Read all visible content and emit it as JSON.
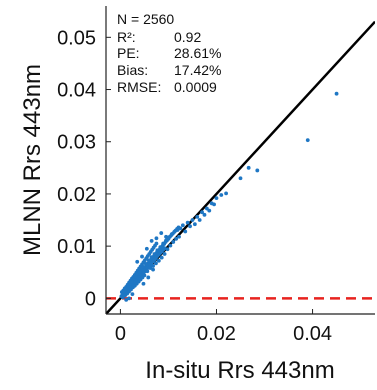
{
  "chart_data": {
    "type": "scatter",
    "xlabel": "In-situ Rrs 443nm",
    "ylabel": "MLNN Rrs 443nm",
    "xlim": [
      -0.003,
      0.053
    ],
    "ylim": [
      -0.003,
      0.056
    ],
    "xticks": [
      0,
      0.02,
      0.04
    ],
    "xtick_labels": [
      "0",
      "0.02",
      "0.04"
    ],
    "yticks": [
      0,
      0.01,
      0.02,
      0.03,
      0.04,
      0.05
    ],
    "ytick_labels": [
      "0",
      "0.01",
      "0.02",
      "0.03",
      "0.04",
      "0.05"
    ],
    "grid": false,
    "colors": {
      "points": "#1f77c4",
      "one_to_one_line": "#000000",
      "zero_line": "#e8231f"
    },
    "reference_lines": [
      {
        "kind": "1:1",
        "style": "solid",
        "color": "#000000"
      },
      {
        "kind": "y=0",
        "style": "dashed",
        "color": "#e8231f"
      }
    ],
    "stats": [
      {
        "label": "N = 2560",
        "value": ""
      },
      {
        "label": "R²:",
        "value": "0.92"
      },
      {
        "label": "PE:",
        "value": "28.61%"
      },
      {
        "label": "Bias:",
        "value": "17.42%"
      },
      {
        "label": "RMSE:",
        "value": "0.0009"
      }
    ],
    "series": [
      {
        "points": [
          [
            0.0004,
            0.0006
          ],
          [
            0.0007,
            0.001
          ],
          [
            0.001,
            0.0014
          ],
          [
            0.0013,
            0.0017
          ],
          [
            0.0016,
            0.002
          ],
          [
            0.0019,
            0.0023
          ],
          [
            0.0022,
            0.0026
          ],
          [
            0.0025,
            0.003
          ],
          [
            0.0028,
            0.0033
          ],
          [
            0.0031,
            0.0036
          ],
          [
            0.0034,
            0.004
          ],
          [
            0.0037,
            0.0043
          ],
          [
            0.004,
            0.0046
          ],
          [
            0.0043,
            0.005
          ],
          [
            0.0046,
            0.0053
          ],
          [
            0.0049,
            0.0057
          ],
          [
            0.0052,
            0.006
          ],
          [
            0.0055,
            0.0064
          ],
          [
            0.0058,
            0.0067
          ],
          [
            0.0061,
            0.007
          ],
          [
            0.0064,
            0.0074
          ],
          [
            0.0067,
            0.0078
          ],
          [
            0.007,
            0.0081
          ],
          [
            0.0073,
            0.0084
          ],
          [
            0.0076,
            0.0088
          ],
          [
            0.0079,
            0.0091
          ],
          [
            0.0082,
            0.0094
          ],
          [
            0.0085,
            0.0098
          ],
          [
            0.0088,
            0.0101
          ],
          [
            0.0091,
            0.0104
          ],
          [
            0.0094,
            0.0108
          ],
          [
            0.0097,
            0.0111
          ],
          [
            0.01,
            0.0114
          ],
          [
            0.0103,
            0.0118
          ],
          [
            0.0106,
            0.0121
          ],
          [
            0.0109,
            0.0124
          ],
          [
            0.0112,
            0.0127
          ],
          [
            0.0115,
            0.013
          ],
          [
            0.0118,
            0.0133
          ],
          [
            0.0121,
            0.0136
          ],
          [
            0.0005,
            0.0002
          ],
          [
            0.0008,
            0.0005
          ],
          [
            0.0011,
            0.0009
          ],
          [
            0.0014,
            0.0012
          ],
          [
            0.0017,
            0.0015
          ],
          [
            0.002,
            0.0018
          ],
          [
            0.0023,
            0.0022
          ],
          [
            0.0026,
            0.0025
          ],
          [
            0.0029,
            0.0028
          ],
          [
            0.0032,
            0.0031
          ],
          [
            0.0035,
            0.0035
          ],
          [
            0.0038,
            0.0038
          ],
          [
            0.0041,
            0.0041
          ],
          [
            0.0044,
            0.0044
          ],
          [
            0.0047,
            0.0048
          ],
          [
            0.005,
            0.0051
          ],
          [
            0.0053,
            0.0054
          ],
          [
            0.0056,
            0.0058
          ],
          [
            0.0059,
            0.0061
          ],
          [
            0.0062,
            0.0064
          ],
          [
            0.0065,
            0.0068
          ],
          [
            0.0068,
            0.0071
          ],
          [
            0.0071,
            0.0074
          ],
          [
            0.0074,
            0.0077
          ],
          [
            0.0077,
            0.0081
          ],
          [
            0.008,
            0.0084
          ],
          [
            0.0083,
            0.0087
          ],
          [
            0.0086,
            0.009
          ],
          [
            0.0089,
            0.0093
          ],
          [
            0.0092,
            0.0096
          ],
          [
            0.0003,
            0.0012
          ],
          [
            0.0006,
            0.0015
          ],
          [
            0.0009,
            0.0019
          ],
          [
            0.0012,
            0.0022
          ],
          [
            0.0015,
            0.0026
          ],
          [
            0.0018,
            0.003
          ],
          [
            0.0021,
            0.0034
          ],
          [
            0.0024,
            0.0038
          ],
          [
            0.0027,
            0.0041
          ],
          [
            0.003,
            0.0045
          ],
          [
            0.0033,
            0.0049
          ],
          [
            0.0036,
            0.0053
          ],
          [
            0.0039,
            0.0057
          ],
          [
            0.0042,
            0.0061
          ],
          [
            0.0045,
            0.0065
          ],
          [
            0.0048,
            0.0069
          ],
          [
            0.0051,
            0.0073
          ],
          [
            0.0054,
            0.0077
          ],
          [
            0.0057,
            0.0081
          ],
          [
            0.006,
            0.0085
          ],
          [
            0.0063,
            0.0089
          ],
          [
            0.0066,
            0.0093
          ],
          [
            0.0069,
            0.0097
          ],
          [
            0.0072,
            0.0101
          ],
          [
            0.0075,
            0.0105
          ],
          [
            0.0002,
            0.0004
          ],
          [
            0.0004,
            0.0003
          ],
          [
            0.0006,
            0.0008
          ],
          [
            0.0008,
            0.0013
          ],
          [
            0.001,
            0.0006
          ],
          [
            0.0012,
            0.0018
          ],
          [
            0.0014,
            0.0009
          ],
          [
            0.0016,
            0.0024
          ],
          [
            0.0018,
            0.0013
          ],
          [
            0.002,
            0.0028
          ],
          [
            0.0022,
            0.0017
          ],
          [
            0.0024,
            0.0031
          ],
          [
            0.0026,
            0.0021
          ],
          [
            0.0028,
            0.0037
          ],
          [
            0.003,
            0.0024
          ],
          [
            0.0032,
            0.0041
          ],
          [
            0.0034,
            0.0028
          ],
          [
            0.0036,
            0.0047
          ],
          [
            0.0038,
            0.0032
          ],
          [
            0.004,
            0.0051
          ],
          [
            0.0042,
            0.0036
          ],
          [
            0.0044,
            0.0055
          ],
          [
            0.0046,
            0.004
          ],
          [
            0.0048,
            0.006
          ],
          [
            0.005,
            0.0044
          ],
          [
            0.0053,
            0.0066
          ],
          [
            0.0056,
            0.0052
          ],
          [
            0.0059,
            0.0073
          ],
          [
            0.0062,
            0.0058
          ],
          [
            0.0065,
            0.0079
          ],
          [
            0.0068,
            0.0062
          ],
          [
            0.0071,
            0.0085
          ],
          [
            0.0074,
            0.0067
          ],
          [
            0.0077,
            0.0092
          ],
          [
            0.008,
            0.0072
          ],
          [
            0.0083,
            0.0098
          ],
          [
            0.0086,
            0.0078
          ],
          [
            0.0089,
            0.0105
          ],
          [
            0.0092,
            0.0085
          ],
          [
            0.0095,
            0.0111
          ],
          [
            0.0098,
            0.0094
          ],
          [
            0.0101,
            0.0117
          ],
          [
            0.0104,
            0.0101
          ],
          [
            0.0107,
            0.0123
          ],
          [
            0.011,
            0.0108
          ],
          [
            0.0113,
            0.0128
          ],
          [
            0.0116,
            0.0114
          ],
          [
            0.0119,
            0.0131
          ],
          [
            0.0122,
            0.0118
          ],
          [
            0.0125,
            0.0134
          ],
          [
            0.0075,
            0.0115
          ],
          [
            0.0085,
            0.0125
          ],
          [
            0.0095,
            0.0118
          ],
          [
            0.013,
            0.014
          ],
          [
            0.0135,
            0.0128
          ],
          [
            0.014,
            0.0145
          ],
          [
            0.0145,
            0.0138
          ],
          [
            0.015,
            0.015
          ],
          [
            0.0155,
            0.0142
          ],
          [
            0.016,
            0.0156
          ],
          [
            0.0165,
            0.015
          ],
          [
            0.017,
            0.0165
          ],
          [
            0.0175,
            0.016
          ],
          [
            0.018,
            0.0172
          ],
          [
            0.0185,
            0.0168
          ],
          [
            0.019,
            0.0182
          ],
          [
            0.0195,
            0.018
          ],
          [
            0.02,
            0.0192
          ],
          [
            0.021,
            0.0198
          ],
          [
            0.022,
            0.0201
          ],
          [
            0.025,
            0.023
          ],
          [
            0.0267,
            0.025
          ],
          [
            0.0285,
            0.0245
          ],
          [
            0.039,
            0.0303
          ],
          [
            0.045,
            0.0392
          ],
          [
            0.0012,
            -0.0003
          ],
          [
            0.0018,
            0.0
          ],
          [
            0.0025,
            0.0008
          ],
          [
            0.0035,
            0.007
          ],
          [
            0.0045,
            0.008
          ],
          [
            0.0055,
            0.0095
          ],
          [
            0.0065,
            0.011
          ],
          [
            0.0048,
            0.0028
          ],
          [
            0.0058,
            0.004
          ],
          [
            0.0068,
            0.0055
          ]
        ]
      }
    ]
  }
}
